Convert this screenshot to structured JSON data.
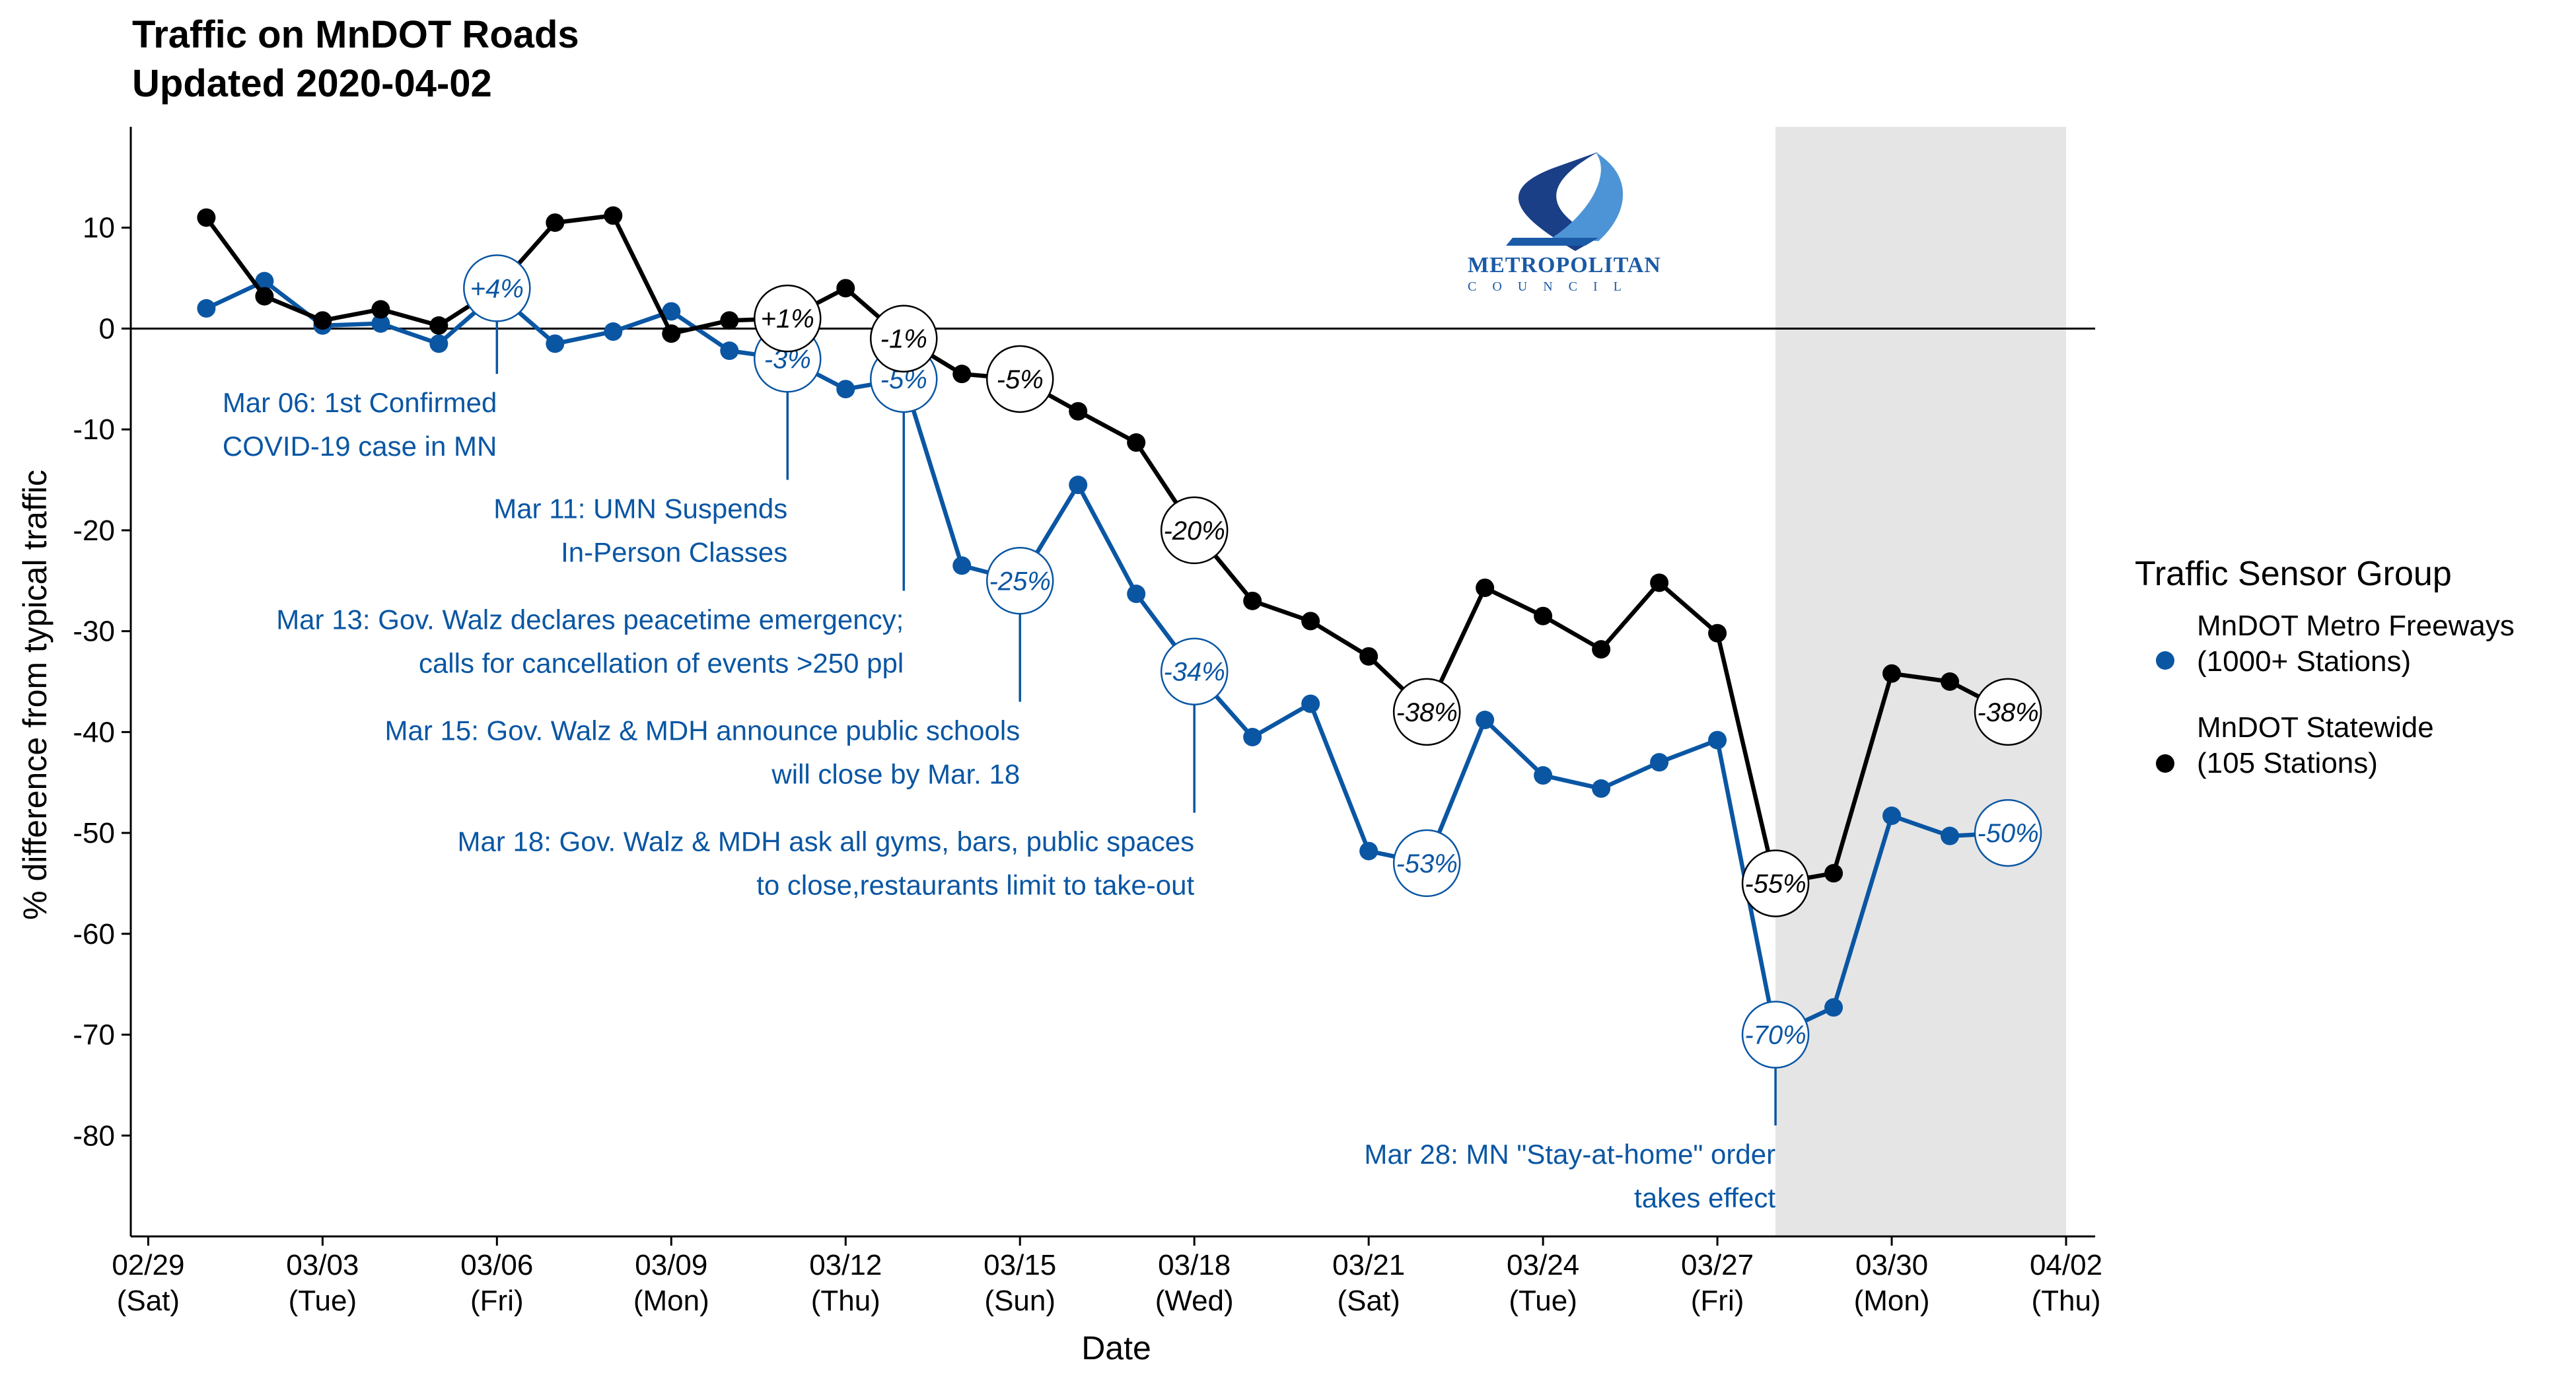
{
  "chart_data": {
    "type": "line",
    "title": "Traffic on MnDOT Roads",
    "subtitle": "Updated 2020-04-02",
    "xlabel": "Date",
    "ylabel": "% difference from typical traffic",
    "ylim": [
      -90,
      20
    ],
    "yticks": [
      10,
      0,
      -10,
      -20,
      -30,
      -40,
      -50,
      -60,
      -70,
      -80
    ],
    "xlim": [
      -0.3,
      33.5
    ],
    "xticks": [
      {
        "x": 0,
        "top": "02/29",
        "bottom": "(Sat)"
      },
      {
        "x": 3,
        "top": "03/03",
        "bottom": "(Tue)"
      },
      {
        "x": 6,
        "top": "03/06",
        "bottom": "(Fri)"
      },
      {
        "x": 9,
        "top": "03/09",
        "bottom": "(Mon)"
      },
      {
        "x": 12,
        "top": "03/12",
        "bottom": "(Thu)"
      },
      {
        "x": 15,
        "top": "03/15",
        "bottom": "(Sun)"
      },
      {
        "x": 18,
        "top": "03/18",
        "bottom": "(Wed)"
      },
      {
        "x": 21,
        "top": "03/21",
        "bottom": "(Sat)"
      },
      {
        "x": 24,
        "top": "03/24",
        "bottom": "(Tue)"
      },
      {
        "x": 27,
        "top": "03/27",
        "bottom": "(Fri)"
      },
      {
        "x": 30,
        "top": "03/30",
        "bottom": "(Mon)"
      },
      {
        "x": 33,
        "top": "04/02",
        "bottom": "(Thu)"
      }
    ],
    "shaded_region": [
      28,
      33
    ],
    "grid": false,
    "legend": {
      "title": "Traffic Sensor Group",
      "position": "right"
    },
    "series": [
      {
        "name": "MnDOT Metro Freeways",
        "name_line2": "(1000+ Stations)",
        "color": "#0a56a3",
        "x": [
          1,
          2,
          3,
          4,
          5,
          6,
          7,
          8,
          9,
          10,
          11,
          12,
          13,
          14,
          15,
          16,
          17,
          18,
          19,
          20,
          21,
          22,
          23,
          24,
          25,
          26,
          27,
          28,
          29,
          30,
          31,
          32
        ],
        "values": [
          2,
          4.7,
          0.3,
          0.5,
          -1.5,
          3.5,
          -1.5,
          -0.3,
          1.7,
          -2.2,
          -3,
          -6,
          -5,
          -23.5,
          -25,
          -15.5,
          -26.3,
          -34,
          -40.5,
          -37.2,
          -51.8,
          -53,
          -38.8,
          -44.3,
          -45.6,
          -43,
          -40.8,
          -70,
          -67.3,
          -48.3,
          -50.3,
          -50
        ]
      },
      {
        "name": "MnDOT Statewide",
        "name_line2": "(105 Stations)",
        "color": "#000000",
        "x": [
          1,
          2,
          3,
          4,
          5,
          6,
          7,
          8,
          9,
          10,
          11,
          12,
          13,
          14,
          15,
          16,
          17,
          18,
          19,
          20,
          21,
          22,
          23,
          24,
          25,
          26,
          27,
          28,
          29,
          30,
          31,
          32
        ],
        "values": [
          11,
          3.2,
          0.8,
          1.9,
          0.3,
          4,
          10.5,
          11.2,
          -0.5,
          0.8,
          1,
          4,
          -1,
          -4.5,
          -5,
          -8.2,
          -11.3,
          -20,
          -27,
          -29,
          -32.5,
          -38,
          -25.7,
          -28.5,
          -31.8,
          -25.2,
          -30.2,
          -55,
          -54,
          -34.2,
          -35,
          -38
        ]
      }
    ],
    "labels": [
      {
        "series": 0,
        "x": 6,
        "y": 4,
        "text": "+4%"
      },
      {
        "series": 0,
        "x": 11,
        "y": -3,
        "text": "-3%"
      },
      {
        "series": 0,
        "x": 13,
        "y": -5,
        "text": "-5%"
      },
      {
        "series": 0,
        "x": 15,
        "y": -25,
        "text": "-25%"
      },
      {
        "series": 0,
        "x": 18,
        "y": -34,
        "text": "-34%"
      },
      {
        "series": 0,
        "x": 22,
        "y": -53,
        "text": "-53%"
      },
      {
        "series": 0,
        "x": 28,
        "y": -70,
        "text": "-70%"
      },
      {
        "series": 0,
        "x": 32,
        "y": -50,
        "text": "-50%"
      },
      {
        "series": 1,
        "x": 11,
        "y": 1,
        "text": "+1%"
      },
      {
        "series": 1,
        "x": 13,
        "y": -1,
        "text": "-1%"
      },
      {
        "series": 1,
        "x": 15,
        "y": -5,
        "text": "-5%"
      },
      {
        "series": 1,
        "x": 18,
        "y": -20,
        "text": "-20%"
      },
      {
        "series": 1,
        "x": 22,
        "y": -38,
        "text": "-38%"
      },
      {
        "series": 1,
        "x": 28,
        "y": -55,
        "text": "-55%"
      },
      {
        "series": 1,
        "x": 32,
        "y": -38,
        "text": "-38%"
      }
    ],
    "annotations": [
      {
        "x": 6,
        "y_from": 4,
        "y_to": -4.5,
        "lines": [
          "Mar 06: 1st Confirmed",
          "COVID-19 case in MN"
        ]
      },
      {
        "x": 11,
        "y_from": -3,
        "y_to": -15,
        "lines": [
          "Mar 11: UMN Suspends",
          "In-Person Classes"
        ]
      },
      {
        "x": 13,
        "y_from": -5,
        "y_to": -26,
        "lines": [
          "Mar 13: Gov. Walz declares peacetime emergency;",
          "calls for cancellation of events >250 ppl"
        ]
      },
      {
        "x": 15,
        "y_from": -25,
        "y_to": -37,
        "lines": [
          "Mar 15: Gov. Walz & MDH announce public schools",
          "will close by Mar. 18"
        ]
      },
      {
        "x": 18,
        "y_from": -34,
        "y_to": -48,
        "lines": [
          "Mar 18: Gov. Walz & MDH ask all gyms, bars, public spaces",
          "to close,restaurants limit to take-out"
        ]
      },
      {
        "x": 28,
        "y_from": -70,
        "y_to": -79,
        "lines": [
          "Mar 28: MN \"Stay-at-home\" order",
          "takes effect"
        ]
      }
    ]
  },
  "logo": {
    "name": "metropolitan-council-logo",
    "text_main": "METROPOLITAN",
    "text_sub": "COUNCIL"
  }
}
